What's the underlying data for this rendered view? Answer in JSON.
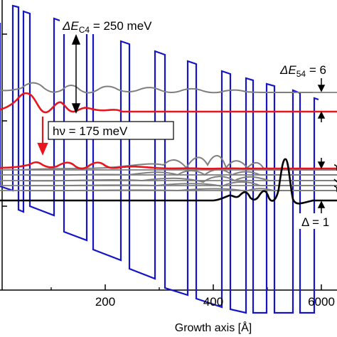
{
  "chart_data": {
    "type": "line",
    "title": "",
    "xlabel": "Growth axis [Å]",
    "ylabel": "",
    "xlim": [
      -30,
      600
    ],
    "x_ticks": [
      "200",
      "400",
      "6000"
    ],
    "colors": {
      "band_profile": "#1414c8",
      "upper_laser_state": "#e8141e",
      "lower_states": "#7f7f7f",
      "ground_state": "#000000",
      "axes": "#000000"
    },
    "annotations": {
      "delta_ec4": {
        "prefix": "ΔE",
        "subscript": "C4",
        "suffix": " = 250 meV"
      },
      "photon": {
        "text": "hν = 175 meV"
      },
      "delta_e54": {
        "prefix": "ΔE",
        "subscript": "54",
        "suffix": " = 6"
      },
      "delta_bottom": {
        "text": "Δ = 1"
      }
    },
    "series": [
      {
        "role": "conduction band profile",
        "color": "#1414c8"
      },
      {
        "role": "upper state wavefunction",
        "color": "#e8141e"
      },
      {
        "role": "lower state wavefunctions",
        "color": "#7f7f7f"
      },
      {
        "role": "ground state wavefunction",
        "color": "#000000"
      }
    ]
  }
}
